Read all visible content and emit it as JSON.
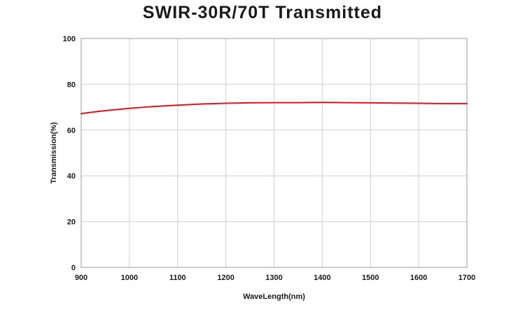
{
  "chart_data": {
    "type": "line",
    "title": "SWIR-30R/70T Transmitted",
    "xlabel": "WaveLength(nm)",
    "ylabel": "Transmission(%)",
    "xlim": [
      900,
      1700
    ],
    "ylim": [
      0,
      100
    ],
    "xticks": [
      900,
      1000,
      1100,
      1200,
      1300,
      1400,
      1500,
      1600,
      1700
    ],
    "yticks": [
      0,
      20,
      40,
      60,
      80,
      100
    ],
    "grid": true,
    "legend": "none",
    "series": [
      {
        "color": "#e0141e",
        "x": [
          900,
          950,
          1000,
          1050,
          1100,
          1150,
          1200,
          1250,
          1300,
          1350,
          1400,
          1450,
          1500,
          1550,
          1600,
          1650,
          1700
        ],
        "y": [
          67.2,
          68.5,
          69.5,
          70.3,
          70.9,
          71.4,
          71.7,
          71.9,
          72.0,
          72.0,
          72.1,
          72.0,
          71.9,
          71.8,
          71.7,
          71.6,
          71.6
        ]
      }
    ]
  }
}
